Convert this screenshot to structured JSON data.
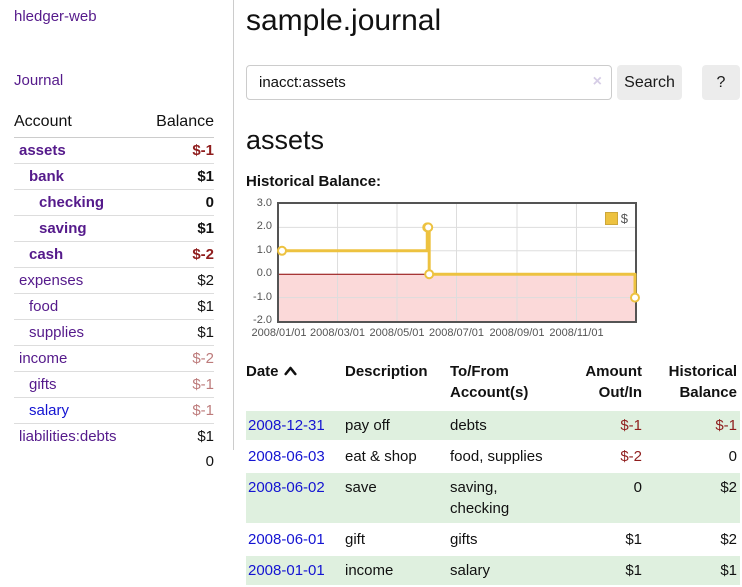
{
  "app": {
    "brand": "hledger-web",
    "nav_journal": "Journal"
  },
  "sidebar": {
    "accounts_header": {
      "account": "Account",
      "balance": "Balance"
    },
    "accounts": [
      {
        "name": "assets",
        "balance": "$-1",
        "depth": 0,
        "bold": true,
        "balance_tone": "neg",
        "link": "purple"
      },
      {
        "name": "bank",
        "balance": "$1",
        "depth": 1,
        "bold": true,
        "balance_tone": "",
        "link": "purple"
      },
      {
        "name": "checking",
        "balance": "0",
        "depth": 2,
        "bold": true,
        "balance_tone": "",
        "link": "purple"
      },
      {
        "name": "saving",
        "balance": "$1",
        "depth": 2,
        "bold": true,
        "balance_tone": "",
        "link": "purple"
      },
      {
        "name": "cash",
        "balance": "$-2",
        "depth": 1,
        "bold": true,
        "balance_tone": "neg",
        "link": "purple"
      },
      {
        "name": "expenses",
        "balance": "$2",
        "depth": 0,
        "bold": false,
        "balance_tone": "",
        "link": "purple"
      },
      {
        "name": "food",
        "balance": "$1",
        "depth": 1,
        "bold": false,
        "balance_tone": "",
        "link": "purple"
      },
      {
        "name": "supplies",
        "balance": "$1",
        "depth": 1,
        "bold": false,
        "balance_tone": "",
        "link": "purple"
      },
      {
        "name": "income",
        "balance": "$-2",
        "depth": 0,
        "bold": false,
        "balance_tone": "negmuted",
        "link": "purple"
      },
      {
        "name": "gifts",
        "balance": "$-1",
        "depth": 1,
        "bold": false,
        "balance_tone": "negmuted",
        "link": "purple"
      },
      {
        "name": "salary",
        "balance": "$-1",
        "depth": 1,
        "bold": false,
        "balance_tone": "negmuted",
        "link": "blue"
      },
      {
        "name": "liabilities:debts",
        "balance": "$1",
        "depth": 0,
        "bold": false,
        "balance_tone": "",
        "link": "purple"
      }
    ],
    "total": "0"
  },
  "main": {
    "title": "sample.journal",
    "search": {
      "value": "inacct:assets",
      "clear_icon": "×",
      "button": "Search",
      "help_button": "?"
    },
    "section_title": "assets",
    "chart_heading": "Historical Balance:"
  },
  "chart_data": {
    "type": "line",
    "title": "Historical Balance:",
    "step": true,
    "series": [
      {
        "name": "$",
        "color": "#EDC240",
        "points": [
          {
            "date": "2008-01-01",
            "value": 1
          },
          {
            "date": "2008-06-01",
            "value": 2
          },
          {
            "date": "2008-06-02",
            "value": 2
          },
          {
            "date": "2008-06-03",
            "value": 0
          },
          {
            "date": "2008-12-31",
            "value": -1
          }
        ]
      }
    ],
    "ylim": [
      -2,
      3
    ],
    "y_tick_labels": [
      "3.0",
      "2.0",
      "1.0",
      "0.0",
      "-1.0",
      "-2.0"
    ],
    "y_ticks": [
      3,
      2,
      1,
      0,
      -1,
      -2
    ],
    "x_tick_labels": [
      "2008/01/01",
      "2008/03/01",
      "2008/05/01",
      "2008/07/01",
      "2008/09/01",
      "2008/11/01"
    ],
    "x_tick_dates": [
      "2008-01-01",
      "2008-03-01",
      "2008-05-01",
      "2008-07-01",
      "2008-09-01",
      "2008-11-01"
    ],
    "x_range": [
      "2008-01-01",
      "2008-12-31"
    ],
    "grid": true,
    "negative_region_color": "#FBD9D9",
    "zero_line_color": "#8B0000",
    "grid_color": "#dddddd",
    "legend": {
      "label": "$",
      "position": "top-right"
    }
  },
  "transactions": {
    "headers": [
      "Date",
      "Description",
      "To/From Account(s)",
      "Amount Out/In",
      "Historical Balance"
    ],
    "sort_indicator": "ascending",
    "rows": [
      {
        "date": "2008-12-31",
        "description": "pay off",
        "accounts": "debts",
        "amount": "$-1",
        "amount_neg": true,
        "balance": "$-1",
        "balance_neg": true
      },
      {
        "date": "2008-06-03",
        "description": "eat & shop",
        "accounts": "food, supplies",
        "amount": "$-2",
        "amount_neg": true,
        "balance": "0",
        "balance_neg": false
      },
      {
        "date": "2008-06-02",
        "description": "save",
        "accounts": "saving, checking",
        "amount": "0",
        "amount_neg": false,
        "balance": "$2",
        "balance_neg": false
      },
      {
        "date": "2008-06-01",
        "description": "gift",
        "accounts": "gifts",
        "amount": "$1",
        "amount_neg": false,
        "balance": "$2",
        "balance_neg": false
      },
      {
        "date": "2008-01-01",
        "description": "income",
        "accounts": "salary",
        "amount": "$1",
        "amount_neg": false,
        "balance": "$1",
        "balance_neg": false
      }
    ]
  }
}
